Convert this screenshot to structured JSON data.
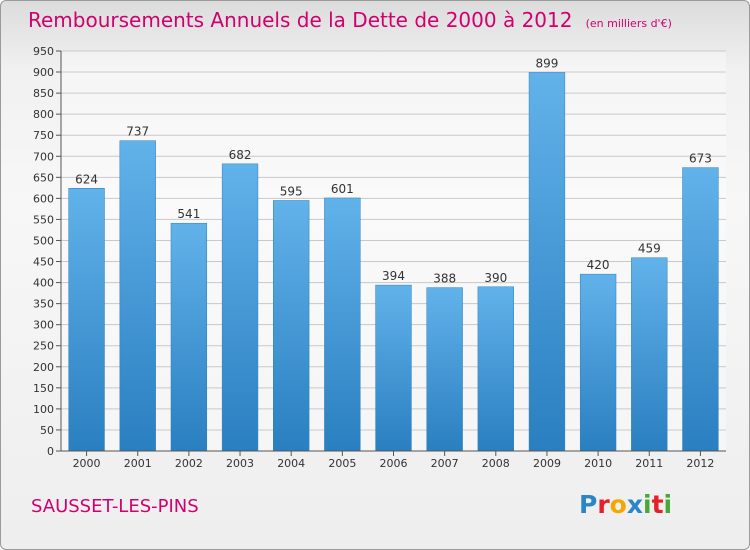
{
  "title": "Remboursements Annuels de la Dette de 2000 à 2012",
  "unit_note": "(en milliers d'€)",
  "location": "SAUSSET-LES-PINS",
  "logo": {
    "text": "Proxiti",
    "letters": [
      {
        "char": "P",
        "color": "#2b86c8"
      },
      {
        "char": "r",
        "color": "#e4202a"
      },
      {
        "char": "o",
        "color": "#f7a600"
      },
      {
        "char": "x",
        "color": "#2b86c8"
      },
      {
        "char": "i",
        "color": "#47a838"
      },
      {
        "char": "t",
        "color": "#e4202a"
      },
      {
        "char": "i",
        "color": "#47a838"
      }
    ]
  },
  "colors": {
    "title": "#d1006e",
    "bar_top": "#62b2ea",
    "bar_bottom": "#2a7fc0",
    "grid": "#c9c9c9"
  },
  "chart_data": {
    "type": "bar",
    "categories": [
      "2000",
      "2001",
      "2002",
      "2003",
      "2004",
      "2005",
      "2006",
      "2007",
      "2008",
      "2009",
      "2010",
      "2011",
      "2012"
    ],
    "values": [
      624,
      737,
      541,
      682,
      595,
      601,
      394,
      388,
      390,
      899,
      420,
      459,
      673
    ],
    "ylim": [
      0,
      950
    ],
    "yticks": [
      0,
      50,
      100,
      150,
      200,
      250,
      300,
      350,
      400,
      450,
      500,
      550,
      600,
      650,
      700,
      750,
      800,
      850,
      900,
      950
    ],
    "grid": true,
    "data_labels": true
  }
}
